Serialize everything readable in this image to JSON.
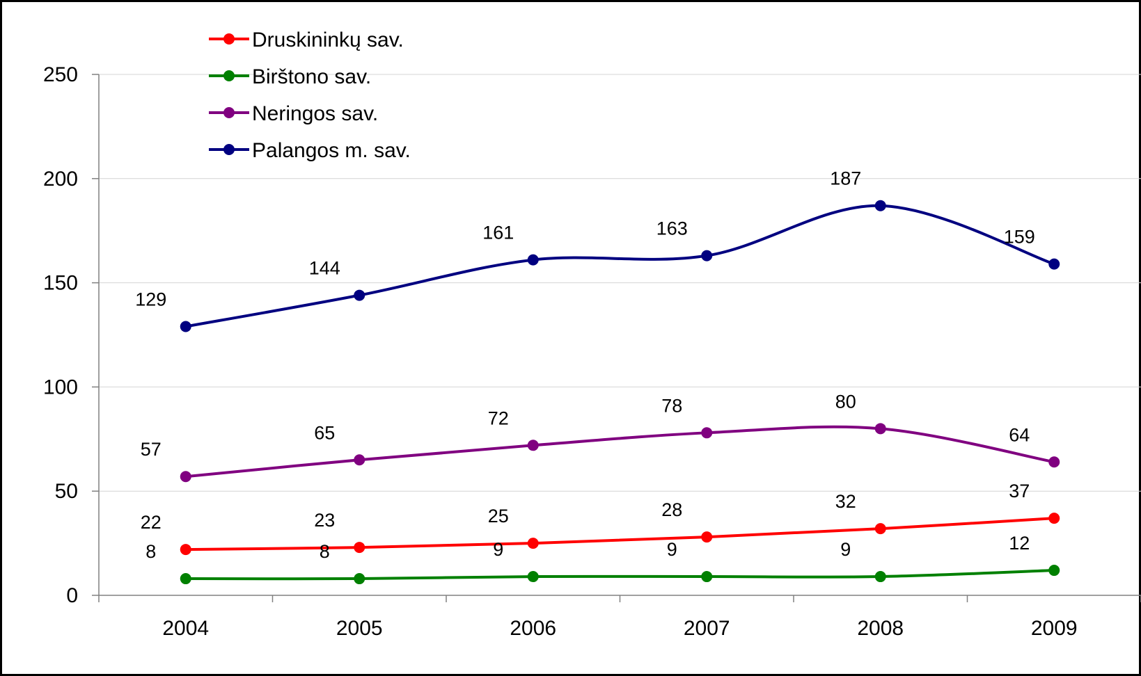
{
  "chart_data": {
    "type": "line",
    "title": "",
    "xlabel": "",
    "ylabel": "",
    "categories": [
      "2004",
      "2005",
      "2006",
      "2007",
      "2008",
      "2009"
    ],
    "y_ticks": [
      "0",
      "50",
      "100",
      "150",
      "200",
      "250"
    ],
    "ylim": [
      0,
      250
    ],
    "grid": "horizontal",
    "legend_position": "top-left",
    "smooth": true,
    "series": [
      {
        "name": "Druskininkų sav.",
        "color": "#ff0000",
        "values": [
          22,
          23,
          25,
          28,
          32,
          37
        ]
      },
      {
        "name": "Birštono sav.",
        "color": "#008000",
        "values": [
          8,
          8,
          9,
          9,
          9,
          12
        ]
      },
      {
        "name": "Neringos sav.",
        "color": "#800080",
        "values": [
          57,
          65,
          72,
          78,
          80,
          64
        ]
      },
      {
        "name": "Palangos m. sav.",
        "color": "#000080",
        "values": [
          129,
          144,
          161,
          163,
          187,
          159
        ]
      }
    ]
  }
}
